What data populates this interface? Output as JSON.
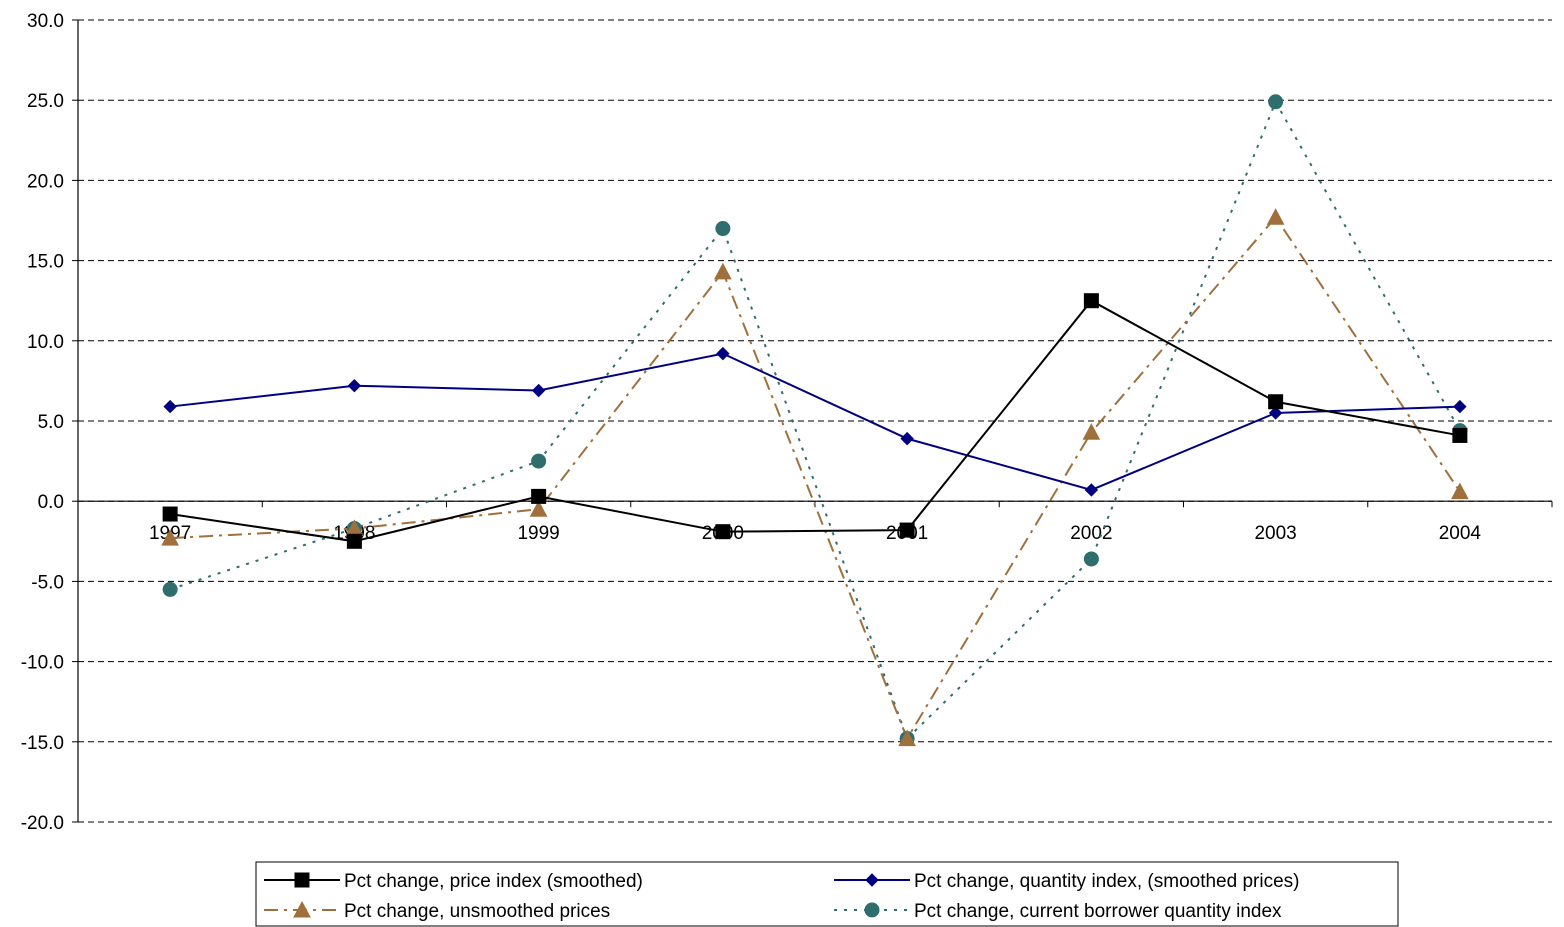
{
  "chart_data": {
    "type": "line",
    "title": "",
    "xlabel": "",
    "ylabel": "",
    "categories": [
      "1997",
      "1998",
      "1999",
      "2000",
      "2001",
      "2002",
      "2003",
      "2004"
    ],
    "ylim": [
      -20.0,
      30.0
    ],
    "ytick_step": 5.0,
    "y_tick_labels": [
      "30.0",
      "25.0",
      "20.0",
      "15.0",
      "10.0",
      "5.0",
      "0.0",
      "-5.0",
      "-10.0",
      "-15.0",
      "-20.0"
    ],
    "grid": "horizontal dashed",
    "legend_position": "bottom",
    "series": [
      {
        "name": "Pct change, price index (smoothed)",
        "color": "#000000",
        "marker": "square",
        "dash": "solid",
        "values": [
          -0.8,
          -2.5,
          0.3,
          -1.9,
          -1.8,
          12.5,
          6.2,
          4.1
        ]
      },
      {
        "name": "Pct change, quantity index, (smoothed prices)",
        "color": "#000080",
        "marker": "diamond",
        "dash": "solid",
        "values": [
          5.9,
          7.2,
          6.9,
          9.2,
          3.9,
          0.7,
          5.5,
          5.9
        ]
      },
      {
        "name": "Pct change, unsmoothed prices",
        "color": "#A0703C",
        "marker": "triangle",
        "dash": "dashdot",
        "values": [
          -2.3,
          -1.7,
          -0.5,
          14.3,
          -14.8,
          4.3,
          17.7,
          0.6
        ]
      },
      {
        "name": "Pct change, current borrower quantity index",
        "color": "#2E6E6E",
        "marker": "circle",
        "dash": "dotted",
        "values": [
          -5.5,
          -1.7,
          2.5,
          17.0,
          -14.8,
          -3.6,
          24.9,
          4.4
        ]
      }
    ]
  }
}
